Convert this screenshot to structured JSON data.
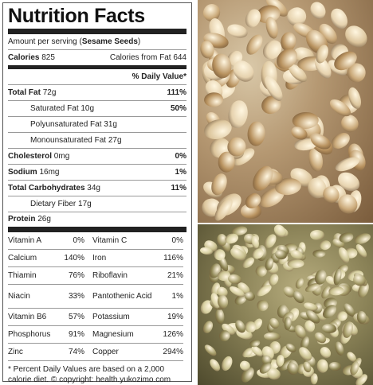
{
  "label": {
    "title": "Nutrition Facts",
    "serving_prefix": "Amount per serving (",
    "serving_name": "Sesame Seeds",
    "serving_suffix": ")",
    "calories_label": "Calories",
    "calories_value": "825",
    "calories_from_fat_label": "Calories from Fat",
    "calories_from_fat_value": "644",
    "daily_value_header": "% Daily Value*",
    "nutrients": [
      {
        "label": "Total Fat",
        "amount": "72g",
        "dv": "111%"
      },
      {
        "label": "Saturated Fat",
        "amount": "10g",
        "dv": "50%"
      },
      {
        "label": "Polyunsaturated Fat",
        "amount": "31g",
        "dv": ""
      },
      {
        "label": "Monounsaturated Fat",
        "amount": "27g",
        "dv": ""
      },
      {
        "label": "Cholesterol",
        "amount": "0mg",
        "dv": "0%"
      },
      {
        "label": "Sodium",
        "amount": "16mg",
        "dv": "1%"
      },
      {
        "label": "Total Carbohydrates",
        "amount": "34g",
        "dv": "11%"
      },
      {
        "label": "Dietary Fiber",
        "amount": "17g",
        "dv": ""
      }
    ],
    "protein_label": "Protein",
    "protein_amount": "26g",
    "vitamins_left": [
      {
        "name": "Vitamin A",
        "pct": "0%"
      },
      {
        "name": "Calcium",
        "pct": "140%"
      },
      {
        "name": "Thiamin",
        "pct": "76%"
      },
      {
        "name": "Niacin",
        "pct": "33%"
      },
      {
        "name": "Vitamin B6",
        "pct": "57%"
      },
      {
        "name": "Phosphorus",
        "pct": "91%"
      },
      {
        "name": "Zinc",
        "pct": "74%"
      }
    ],
    "vitamins_right": [
      {
        "name": "Vitamin C",
        "pct": "0%"
      },
      {
        "name": "Iron",
        "pct": "116%"
      },
      {
        "name": "Riboflavin",
        "pct": "21%"
      },
      {
        "name": "Pantothenic Acid",
        "pct": "1%"
      },
      {
        "name": "Potassium",
        "pct": "19%"
      },
      {
        "name": "Magnesium",
        "pct": "126%"
      },
      {
        "name": "Copper",
        "pct": "294%"
      }
    ],
    "footnote": "* Percent Daily Values are based on a 2,000 calorie diet. © copyright: health.yukozimo.com"
  },
  "colors": {
    "border": "#222222",
    "divider": "#999999",
    "text": "#222222"
  },
  "images": [
    {
      "name": "hulled-sesame-seeds-photo"
    },
    {
      "name": "unhulled-sesame-seeds-photo"
    }
  ]
}
